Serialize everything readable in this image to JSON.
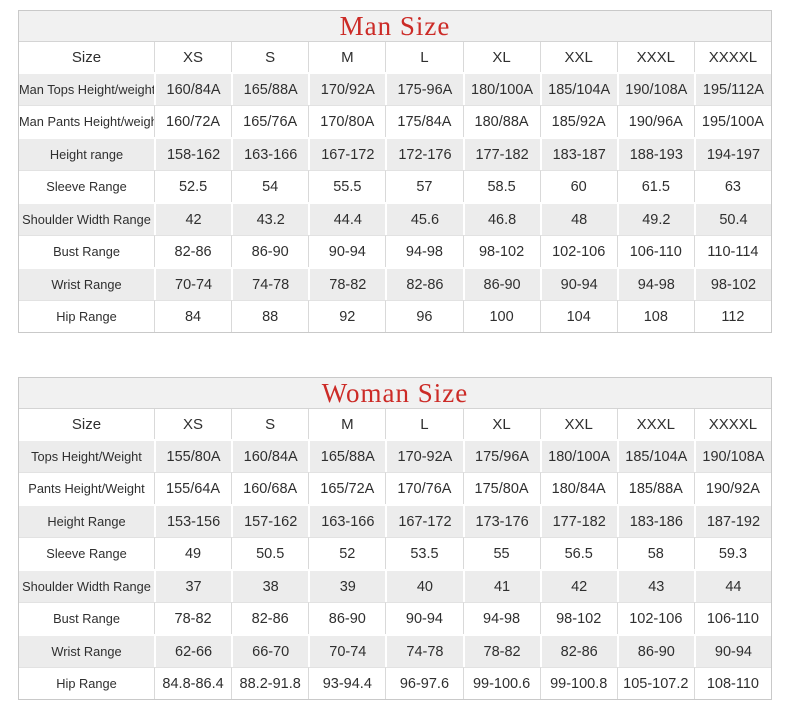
{
  "colors": {
    "title_text": "#cc2b27",
    "title_row_bg": "#f1f1f1",
    "stripe_row_bg": "#ececec",
    "grid_line": "#d9d9d9",
    "body_text": "#2f2f2f"
  },
  "tables": [
    {
      "title": "Man Size",
      "header": [
        "Size",
        "XS",
        "S",
        "M",
        "L",
        "XL",
        "XXL",
        "XXXL",
        "XXXXL"
      ],
      "rows": [
        {
          "label": "Man Tops Height/weight",
          "values": [
            "160/84A",
            "165/88A",
            "170/92A",
            "175-96A",
            "180/100A",
            "185/104A",
            "190/108A",
            "195/112A"
          ]
        },
        {
          "label": "Man Pants Height/weight",
          "values": [
            "160/72A",
            "165/76A",
            "170/80A",
            "175/84A",
            "180/88A",
            "185/92A",
            "190/96A",
            "195/100A"
          ]
        },
        {
          "label": "Height range",
          "values": [
            "158-162",
            "163-166",
            "167-172",
            "172-176",
            "177-182",
            "183-187",
            "188-193",
            "194-197"
          ]
        },
        {
          "label": "Sleeve Range",
          "values": [
            "52.5",
            "54",
            "55.5",
            "57",
            "58.5",
            "60",
            "61.5",
            "63"
          ]
        },
        {
          "label": "Shoulder Width Range",
          "values": [
            "42",
            "43.2",
            "44.4",
            "45.6",
            "46.8",
            "48",
            "49.2",
            "50.4"
          ]
        },
        {
          "label": "Bust Range",
          "values": [
            "82-86",
            "86-90",
            "90-94",
            "94-98",
            "98-102",
            "102-106",
            "106-110",
            "110-114"
          ]
        },
        {
          "label": "Wrist Range",
          "values": [
            "70-74",
            "74-78",
            "78-82",
            "82-86",
            "86-90",
            "90-94",
            "94-98",
            "98-102"
          ]
        },
        {
          "label": "Hip Range",
          "values": [
            "84",
            "88",
            "92",
            "96",
            "100",
            "104",
            "108",
            "112"
          ]
        }
      ]
    },
    {
      "title": "Woman Size",
      "header": [
        "Size",
        "XS",
        "S",
        "M",
        "L",
        "XL",
        "XXL",
        "XXXL",
        "XXXXL"
      ],
      "rows": [
        {
          "label": "Tops Height/Weight",
          "values": [
            "155/80A",
            "160/84A",
            "165/88A",
            "170-92A",
            "175/96A",
            "180/100A",
            "185/104A",
            "190/108A"
          ]
        },
        {
          "label": "Pants Height/Weight",
          "values": [
            "155/64A",
            "160/68A",
            "165/72A",
            "170/76A",
            "175/80A",
            "180/84A",
            "185/88A",
            "190/92A"
          ]
        },
        {
          "label": "Height Range",
          "values": [
            "153-156",
            "157-162",
            "163-166",
            "167-172",
            "173-176",
            "177-182",
            "183-186",
            "187-192"
          ]
        },
        {
          "label": "Sleeve Range",
          "values": [
            "49",
            "50.5",
            "52",
            "53.5",
            "55",
            "56.5",
            "58",
            "59.3"
          ]
        },
        {
          "label": "Shoulder Width Range",
          "values": [
            "37",
            "38",
            "39",
            "40",
            "41",
            "42",
            "43",
            "44"
          ]
        },
        {
          "label": "Bust Range",
          "values": [
            "78-82",
            "82-86",
            "86-90",
            "90-94",
            "94-98",
            "98-102",
            "102-106",
            "106-110"
          ]
        },
        {
          "label": "Wrist Range",
          "values": [
            "62-66",
            "66-70",
            "70-74",
            "74-78",
            "78-82",
            "82-86",
            "86-90",
            "90-94"
          ]
        },
        {
          "label": "Hip Range",
          "values": [
            "84.8-86.4",
            "88.2-91.8",
            "93-94.4",
            "96-97.6",
            "99-100.6",
            "99-100.8",
            "105-107.2",
            "108-110"
          ]
        }
      ]
    }
  ]
}
